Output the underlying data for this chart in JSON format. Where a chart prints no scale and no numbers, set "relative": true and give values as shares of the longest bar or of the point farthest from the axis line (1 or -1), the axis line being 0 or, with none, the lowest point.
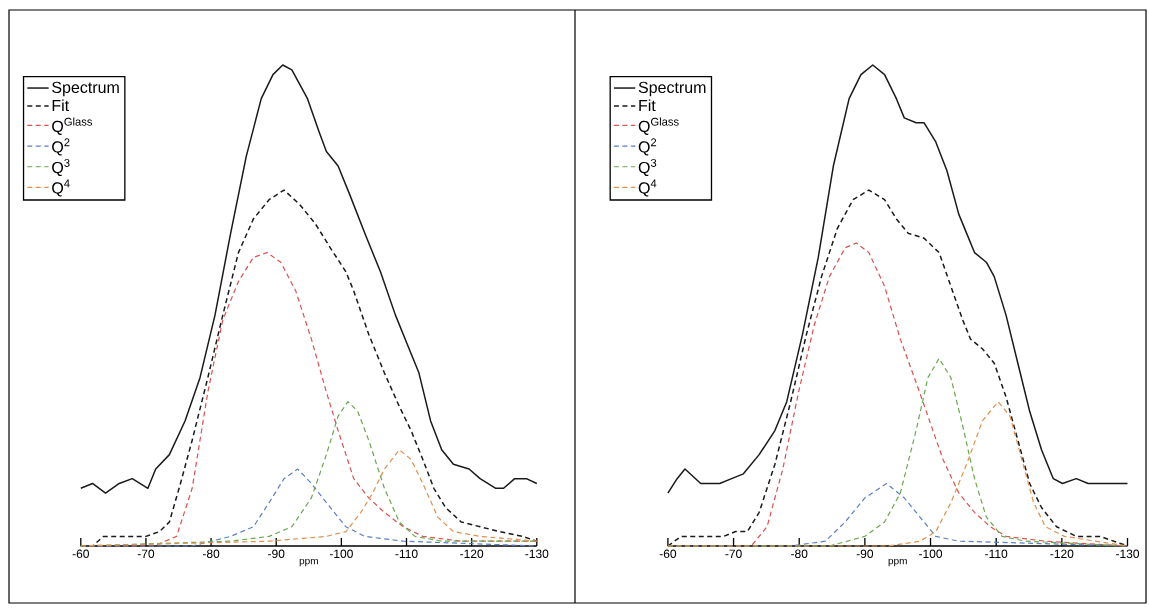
{
  "chart_data": [
    {
      "type": "line",
      "relative": true,
      "xlabel": "ppm",
      "xlim": [
        -60,
        -130
      ],
      "xticks": [
        -60,
        -70,
        -80,
        -90,
        -100,
        -110,
        -120,
        -130
      ],
      "legend": "top left",
      "series": [
        {
          "name": "Spectrum",
          "color": "#1a1a1a",
          "line_style": "solid",
          "x": [
            -60,
            -61.8,
            -63.8,
            -65.9,
            -67.9,
            -70.3,
            -71.5,
            -73.6,
            -76.0,
            -78.3,
            -80.6,
            -83.0,
            -85.4,
            -87.7,
            -89.5,
            -91.0,
            -92.4,
            -94.8,
            -96.6,
            -97.7,
            -99.5,
            -101.3,
            -103.6,
            -106.0,
            -108.3,
            -110.1,
            -111.9,
            -113.7,
            -115.4,
            -117.2,
            -119.6,
            -121.3,
            -123.7,
            -124.9,
            -126.6,
            -128.4,
            -130
          ],
          "values": [
            0.12,
            0.13,
            0.11,
            0.13,
            0.14,
            0.12,
            0.16,
            0.19,
            0.26,
            0.35,
            0.48,
            0.65,
            0.81,
            0.93,
            0.98,
            1.0,
            0.99,
            0.93,
            0.86,
            0.82,
            0.79,
            0.73,
            0.65,
            0.57,
            0.48,
            0.42,
            0.36,
            0.26,
            0.2,
            0.17,
            0.16,
            0.14,
            0.12,
            0.12,
            0.14,
            0.14,
            0.13
          ]
        },
        {
          "name": "Fit",
          "color": "#1a1a1a",
          "line_style": "dashed",
          "x": [
            -60,
            -61.8,
            -63.5,
            -65.9,
            -67.9,
            -70.0,
            -72.1,
            -73.6,
            -75.3,
            -77.1,
            -79.5,
            -81.8,
            -84.2,
            -86.5,
            -88.9,
            -91.2,
            -93.6,
            -96.0,
            -98.3,
            -100.7,
            -101.9,
            -104.2,
            -106.6,
            -108.9,
            -110.7,
            -112.5,
            -114.2,
            -116.0,
            -118.4,
            -121.3,
            -124.3,
            -127.8,
            -130
          ],
          "values": [
            0.0,
            0.0,
            0.02,
            0.02,
            0.02,
            0.02,
            0.03,
            0.05,
            0.13,
            0.22,
            0.35,
            0.48,
            0.61,
            0.68,
            0.72,
            0.74,
            0.71,
            0.67,
            0.62,
            0.57,
            0.53,
            0.44,
            0.36,
            0.29,
            0.24,
            0.18,
            0.12,
            0.08,
            0.05,
            0.04,
            0.03,
            0.02,
            0.01
          ]
        },
        {
          "name": "Q$^{Glass}$",
          "color": "#d9534f",
          "line_style": "dashed",
          "x": [
            -60,
            -71.2,
            -74.7,
            -77.1,
            -79.5,
            -81.8,
            -84.2,
            -86.5,
            -88.6,
            -90.7,
            -93.0,
            -95.4,
            -97.7,
            -99.5,
            -101.9,
            -104.2,
            -106.6,
            -109.5,
            -112.5,
            -118.4,
            -130
          ],
          "values": [
            0.0,
            0.0,
            0.02,
            0.12,
            0.32,
            0.47,
            0.55,
            0.6,
            0.61,
            0.59,
            0.53,
            0.43,
            0.32,
            0.24,
            0.14,
            0.1,
            0.07,
            0.04,
            0.02,
            0.01,
            0.01
          ]
        },
        {
          "name": "Q$^{2}$",
          "color": "#5b7fc4",
          "line_style": "dashed",
          "x": [
            -60,
            -77.1,
            -83.0,
            -86.5,
            -88.9,
            -91.2,
            -93.3,
            -95.4,
            -97.7,
            -100.7,
            -103.6,
            -109.5,
            -130
          ],
          "values": [
            0.0,
            0.0,
            0.02,
            0.04,
            0.09,
            0.14,
            0.16,
            0.13,
            0.09,
            0.04,
            0.02,
            0.01,
            0.0
          ]
        },
        {
          "name": "Q$^{3}$",
          "color": "#6aa84f",
          "line_style": "dashed",
          "x": [
            -60,
            -83.0,
            -88.9,
            -92.4,
            -95.4,
            -97.7,
            -99.5,
            -101.0,
            -102.5,
            -104.2,
            -106.6,
            -108.9,
            -111.3,
            -115.4,
            -130
          ],
          "values": [
            0.0,
            0.01,
            0.02,
            0.04,
            0.1,
            0.19,
            0.27,
            0.3,
            0.28,
            0.22,
            0.12,
            0.05,
            0.02,
            0.01,
            0.01
          ]
        },
        {
          "name": "Q$^{4}$",
          "color": "#e0904f",
          "line_style": "dashed",
          "x": [
            -60,
            -88.9,
            -97.7,
            -100.7,
            -103.0,
            -104.8,
            -106.6,
            -108.9,
            -110.7,
            -112.5,
            -114.8,
            -117.2,
            -121.3,
            -130
          ],
          "values": [
            0.0,
            0.01,
            0.02,
            0.03,
            0.07,
            0.11,
            0.16,
            0.2,
            0.18,
            0.13,
            0.06,
            0.03,
            0.02,
            0.01
          ]
        }
      ]
    },
    {
      "type": "line",
      "relative": true,
      "xlabel": "ppm",
      "xlim": [
        -60,
        -130
      ],
      "xticks": [
        -60,
        -70,
        -80,
        -90,
        -100,
        -110,
        -120,
        -130
      ],
      "legend": "top left",
      "series": [
        {
          "name": "Spectrum",
          "color": "#1a1a1a",
          "line_style": "solid",
          "x": [
            -60,
            -61.4,
            -62.6,
            -65.0,
            -67.9,
            -69.7,
            -71.5,
            -73.9,
            -76.3,
            -78.1,
            -80.5,
            -82.9,
            -85.2,
            -87.6,
            -89.4,
            -91.2,
            -93.0,
            -94.8,
            -96.0,
            -97.8,
            -99.0,
            -100.8,
            -102.5,
            -104.3,
            -105.5,
            -106.7,
            -108.5,
            -109.7,
            -111.5,
            -113.3,
            -115.1,
            -116.9,
            -118.7,
            -120.1,
            -122.2,
            -124.0,
            -125.8,
            -128.2,
            -130
          ],
          "values": [
            0.11,
            0.14,
            0.16,
            0.13,
            0.13,
            0.14,
            0.15,
            0.19,
            0.24,
            0.3,
            0.44,
            0.6,
            0.79,
            0.93,
            0.98,
            1.0,
            0.98,
            0.93,
            0.89,
            0.88,
            0.88,
            0.84,
            0.78,
            0.69,
            0.65,
            0.61,
            0.59,
            0.56,
            0.48,
            0.38,
            0.28,
            0.2,
            0.14,
            0.13,
            0.14,
            0.13,
            0.13,
            0.13,
            0.13
          ]
        },
        {
          "name": "Fit",
          "color": "#1a1a1a",
          "line_style": "dashed",
          "x": [
            -60,
            -62.0,
            -63.8,
            -66.1,
            -68.5,
            -70.3,
            -72.1,
            -73.9,
            -76.3,
            -78.7,
            -81.1,
            -83.4,
            -85.8,
            -88.2,
            -90.6,
            -93.0,
            -94.8,
            -96.6,
            -99.0,
            -101.3,
            -103.1,
            -104.9,
            -106.1,
            -107.9,
            -109.7,
            -111.5,
            -113.3,
            -115.1,
            -116.9,
            -119.2,
            -122.2,
            -125.8,
            -130
          ],
          "values": [
            0.0,
            0.02,
            0.02,
            0.02,
            0.02,
            0.03,
            0.03,
            0.07,
            0.17,
            0.3,
            0.44,
            0.56,
            0.66,
            0.72,
            0.74,
            0.72,
            0.68,
            0.65,
            0.64,
            0.61,
            0.54,
            0.47,
            0.43,
            0.41,
            0.38,
            0.31,
            0.22,
            0.13,
            0.08,
            0.04,
            0.02,
            0.02,
            0.0
          ]
        },
        {
          "name": "Q$^{Glass}$",
          "color": "#d9534f",
          "line_style": "dashed",
          "x": [
            -60,
            -72.7,
            -75.1,
            -77.5,
            -79.9,
            -82.3,
            -84.6,
            -87.0,
            -88.7,
            -90.6,
            -93.0,
            -95.4,
            -97.8,
            -99.6,
            -101.9,
            -104.3,
            -106.7,
            -109.1,
            -111.5,
            -117.5,
            -130
          ],
          "values": [
            0.0,
            0.0,
            0.04,
            0.16,
            0.32,
            0.46,
            0.56,
            0.62,
            0.63,
            0.61,
            0.54,
            0.43,
            0.34,
            0.27,
            0.18,
            0.11,
            0.07,
            0.04,
            0.02,
            0.01,
            0.0
          ]
        },
        {
          "name": "Q$^{2}$",
          "color": "#5b7fc4",
          "line_style": "dashed",
          "x": [
            -60,
            -78.7,
            -84.0,
            -87.0,
            -90.0,
            -93.3,
            -96.0,
            -98.4,
            -100.8,
            -104.3,
            -130
          ],
          "values": [
            0.0,
            0.0,
            0.01,
            0.05,
            0.1,
            0.13,
            0.1,
            0.06,
            0.02,
            0.01,
            0.0
          ]
        },
        {
          "name": "Q$^{3}$",
          "color": "#6aa84f",
          "line_style": "dashed",
          "x": [
            -60,
            -84.6,
            -90.0,
            -93.0,
            -95.4,
            -97.8,
            -99.6,
            -101.3,
            -103.1,
            -104.9,
            -106.7,
            -108.5,
            -110.9,
            -114.5,
            -130
          ],
          "values": [
            0.0,
            0.0,
            0.02,
            0.05,
            0.11,
            0.24,
            0.35,
            0.39,
            0.35,
            0.25,
            0.14,
            0.06,
            0.02,
            0.01,
            0.0
          ]
        },
        {
          "name": "Q$^{4}$",
          "color": "#e0904f",
          "line_style": "dashed",
          "x": [
            -60,
            -93.6,
            -98.4,
            -100.8,
            -103.1,
            -105.5,
            -107.9,
            -110.3,
            -112.1,
            -113.9,
            -115.7,
            -117.5,
            -120.4,
            -130
          ],
          "values": [
            0.0,
            0.0,
            0.01,
            0.03,
            0.09,
            0.17,
            0.26,
            0.3,
            0.27,
            0.18,
            0.09,
            0.04,
            0.02,
            0.0
          ]
        }
      ]
    }
  ]
}
